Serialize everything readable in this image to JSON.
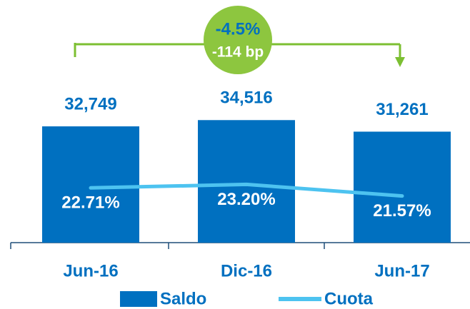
{
  "chart_data": {
    "type": "bar",
    "categories": [
      "Jun-16",
      "Dic-16",
      "Jun-17"
    ],
    "series": [
      {
        "name": "Saldo",
        "color": "#0070c0",
        "values": [
          32749,
          34516,
          31261
        ],
        "value_labels": [
          "32,749",
          "34,516",
          "31,261"
        ]
      },
      {
        "name": "Cuota",
        "type": "line",
        "axis": "y2",
        "color": "#4dc3f0",
        "values": [
          22.71,
          23.2,
          21.57
        ],
        "value_labels": [
          "22.71%",
          "23.20%",
          "21.57%"
        ]
      }
    ],
    "ylim": [
      0,
      40000
    ],
    "y2lim": [
      15,
      35
    ],
    "annotations": [
      "-4.5%",
      "-114 bp"
    ]
  }
}
